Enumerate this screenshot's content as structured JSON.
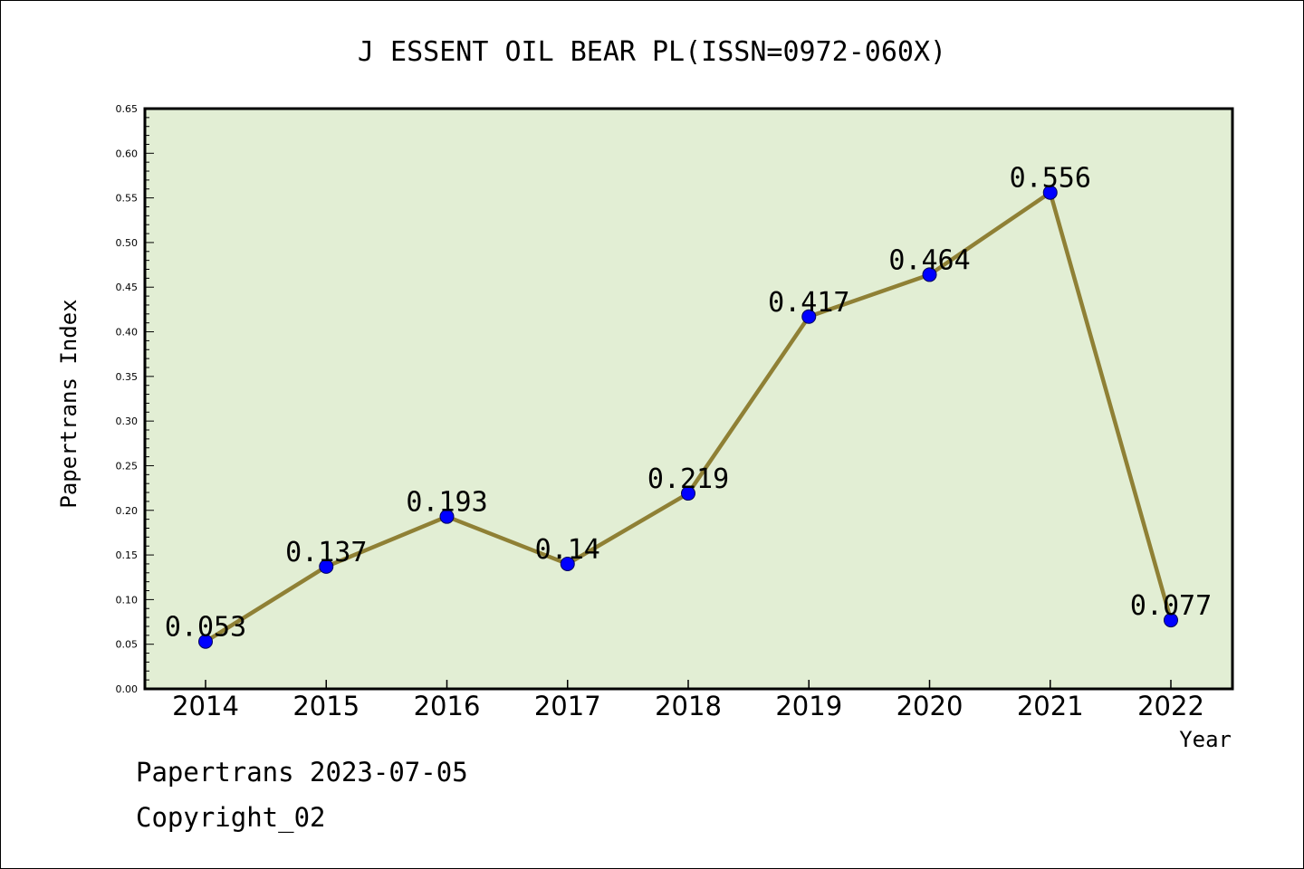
{
  "chart_data": {
    "type": "line",
    "title": "J ESSENT OIL BEAR PL(ISSN=0972-060X)",
    "xlabel": "Year",
    "ylabel": "Papertrans Index",
    "categories": [
      "2014",
      "2015",
      "2016",
      "2017",
      "2018",
      "2019",
      "2020",
      "2021",
      "2022"
    ],
    "series": [
      {
        "values": [
          0.053,
          0.137,
          0.193,
          0.14,
          0.219,
          0.417,
          0.464,
          0.556,
          0.077
        ],
        "data_labels": [
          "0.053",
          "0.137",
          "0.193",
          "0.14",
          "0.219",
          "0.417",
          "0.464",
          "0.556",
          "0.077"
        ],
        "line_color": "#8f8035",
        "marker_color": "#0000ff"
      }
    ],
    "ylim": [
      0,
      0.65
    ],
    "yticks": [
      "0.00",
      "0.05",
      "0.10",
      "0.15",
      "0.20",
      "0.25",
      "0.30",
      "0.35",
      "0.40",
      "0.45",
      "0.50",
      "0.55",
      "0.60",
      "0.65"
    ],
    "plot_background": "#e2eed4",
    "grid": false,
    "legend": "none"
  },
  "footer": {
    "line1": "Papertrans 2023-07-05",
    "line2": "Copyright_02"
  }
}
